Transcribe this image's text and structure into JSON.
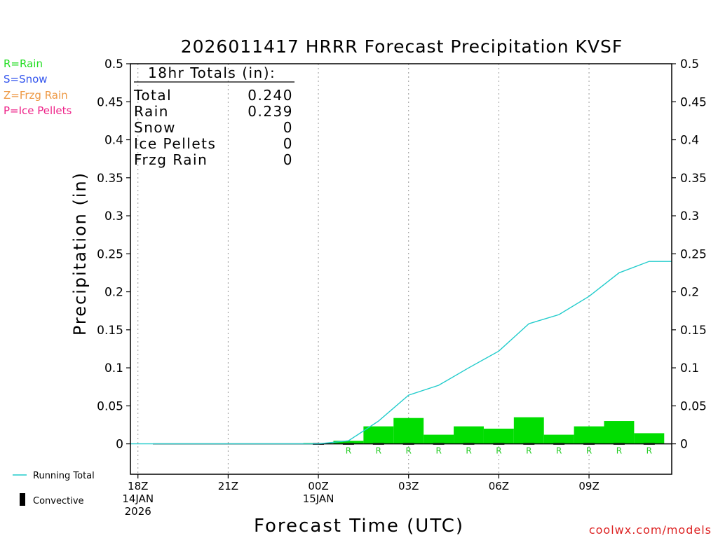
{
  "legend_left": [
    {
      "label": "R=Rain",
      "color": "#22dd22"
    },
    {
      "label": "S=Snow",
      "color": "#3355ee"
    },
    {
      "label": "Z=Frzg Rain",
      "color": "#ee9944"
    },
    {
      "label": "P=Ice Pellets",
      "color": "#ee2288"
    }
  ],
  "legend_bottom": {
    "running_total_label": "Running Total",
    "convective_label": "Convective"
  },
  "totals_box": {
    "title": "18hr Totals (in):",
    "rows": [
      {
        "label": "Total",
        "value": "0.240"
      },
      {
        "label": "Rain",
        "value": "0.239"
      },
      {
        "label": "Snow",
        "value": "0"
      },
      {
        "label": "Ice Pellets",
        "value": "0"
      },
      {
        "label": "Frzg Rain",
        "value": "0"
      }
    ]
  },
  "watermark": "coolwx.com/models",
  "colors": {
    "bar": "#00dd00",
    "line": "#22cccc",
    "ptype_letter": "#22cc22",
    "watermark": "#dd2222"
  },
  "chart_data": {
    "type": "bar",
    "title": "2026011417 HRRR Forecast Precipitation KVSF",
    "xlabel": "Forecast Time (UTC)",
    "ylabel": "Precipitation (in)",
    "ylim": [
      -0.04,
      0.5
    ],
    "xlim": [
      17.75,
      35.75
    ],
    "yticks": [
      0,
      0.05,
      0.1,
      0.15,
      0.2,
      0.25,
      0.3,
      0.35,
      0.4,
      0.45,
      0.5
    ],
    "ytick_labels": [
      "0",
      "0.05",
      "0.1",
      "0.15",
      "0.2",
      "0.25",
      "0.3",
      "0.35",
      "0.4",
      "0.45",
      "0.5"
    ],
    "xticks": [
      {
        "hour": 18,
        "lines": [
          "18Z",
          "14JAN",
          "2026"
        ]
      },
      {
        "hour": 21,
        "lines": [
          "21Z"
        ]
      },
      {
        "hour": 24,
        "lines": [
          "00Z",
          "15JAN"
        ]
      },
      {
        "hour": 27,
        "lines": [
          "03Z"
        ]
      },
      {
        "hour": 30,
        "lines": [
          "06Z"
        ]
      },
      {
        "hour": 33,
        "lines": [
          "09Z"
        ]
      }
    ],
    "grid_vertical": true,
    "hourly_bars": {
      "hours": [
        18,
        19,
        20,
        21,
        22,
        23,
        24,
        25,
        26,
        27,
        28,
        29,
        30,
        31,
        32,
        33,
        34,
        35
      ],
      "values": [
        0,
        0,
        0,
        0,
        0,
        0,
        0.001,
        0.004,
        0.023,
        0.034,
        0.012,
        0.023,
        0.02,
        0.035,
        0.012,
        0.023,
        0.03,
        0.014
      ]
    },
    "running_total": {
      "name": "Running Total",
      "hours": [
        17.75,
        18,
        19,
        20,
        21,
        22,
        23,
        24,
        25,
        26,
        27,
        28,
        29,
        30,
        31,
        32,
        33,
        34,
        35,
        35.75
      ],
      "values": [
        0,
        0,
        0,
        0,
        0,
        0,
        0,
        0,
        0.004,
        0.03,
        0.064,
        0.077,
        0.1,
        0.122,
        0.158,
        0.17,
        0.194,
        0.225,
        0.24,
        0.24
      ]
    },
    "ptype_markers": {
      "hours": [
        25,
        26,
        27,
        28,
        29,
        30,
        31,
        32,
        33,
        34,
        35
      ],
      "letters": [
        "R",
        "R",
        "R",
        "R",
        "R",
        "R",
        "R",
        "R",
        "R",
        "R",
        "R"
      ]
    }
  }
}
